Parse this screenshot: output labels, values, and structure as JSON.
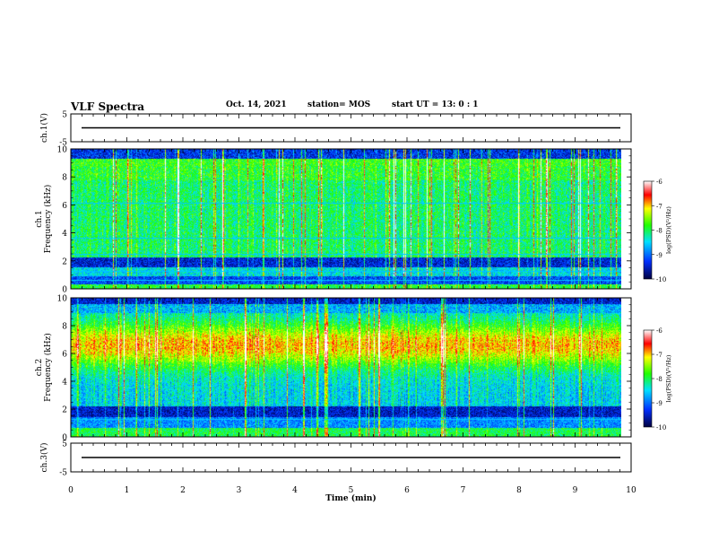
{
  "header": {
    "title": "VLF Spectra",
    "date": "Oct. 14, 2021",
    "station": "station= MOS",
    "start": "start  UT =   13: 0  : 1"
  },
  "chart_data": [
    {
      "type": "line",
      "name": "ch1-voltage",
      "ylabel": "ch.1(V)",
      "ylim": [
        -5,
        5
      ],
      "yticks": [
        5,
        -5
      ],
      "xlim": [
        0,
        10
      ],
      "series": [
        {
          "values": [
            0,
            0
          ]
        }
      ]
    },
    {
      "type": "heatmap",
      "name": "ch1-spectrogram",
      "ylabel": "ch.1\nFrequency (kHz)",
      "ylim": [
        0,
        10
      ],
      "yticks": [
        0,
        2,
        4,
        6,
        8,
        10
      ],
      "xlim": [
        0,
        9.83
      ],
      "colorbar": {
        "label": "log(PSD)(V²/Hz)",
        "ticks": [
          -6,
          -7,
          -8,
          -9,
          -10
        ],
        "range": [
          -10,
          -6
        ]
      }
    },
    {
      "type": "heatmap",
      "name": "ch2-spectrogram",
      "ylabel": "ch.2\nFrequency (kHz)",
      "ylim": [
        0,
        10
      ],
      "yticks": [
        0,
        2,
        4,
        6,
        8,
        10
      ],
      "xlim": [
        0,
        9.83
      ],
      "colorbar": {
        "label": "log(PSD)(V²/Hz)",
        "ticks": [
          -6,
          -7,
          -8,
          -9,
          -10
        ],
        "range": [
          -10,
          -6
        ]
      }
    },
    {
      "type": "line",
      "name": "ch3-voltage",
      "ylabel": "ch.3(V)",
      "ylim": [
        -5,
        5
      ],
      "yticks": [
        5,
        -5
      ],
      "xlim": [
        0,
        10
      ],
      "series": [
        {
          "values": [
            0,
            0
          ]
        }
      ]
    }
  ],
  "xaxis": {
    "label": "Time (min)",
    "ticks": [
      0,
      1,
      2,
      3,
      4,
      5,
      6,
      7,
      8,
      9,
      10
    ],
    "range": [
      0,
      10
    ]
  },
  "colors": {
    "dark": "#000040",
    "blue": "#0030ff",
    "cyan": "#00e0ff",
    "green": "#20ff00",
    "yellow": "#ffff00",
    "red": "#ff0000",
    "white": "#ffffff"
  }
}
